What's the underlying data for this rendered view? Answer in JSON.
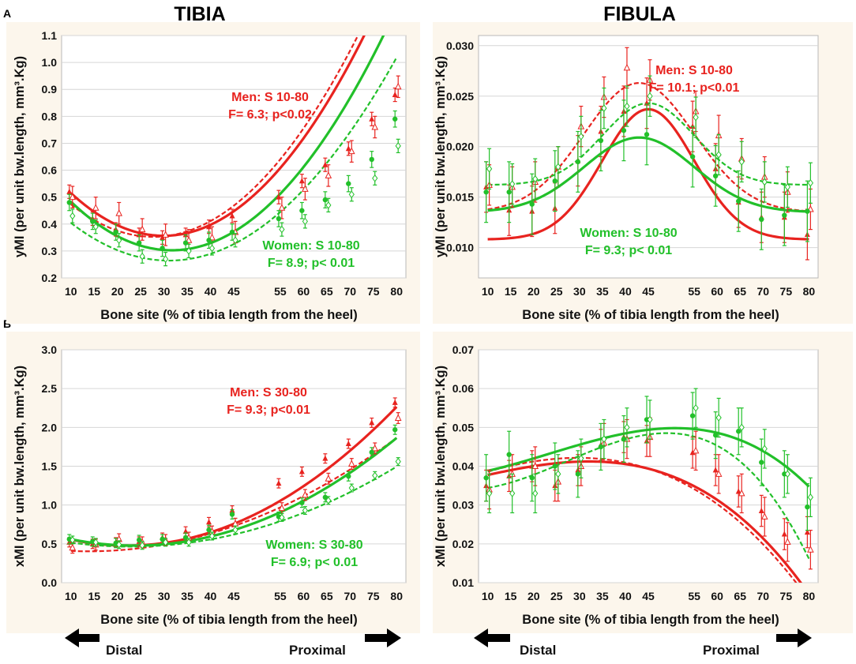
{
  "titles": {
    "tibia": "TIBIA",
    "fibula": "FIBULA"
  },
  "panel_labels": {
    "a": "A",
    "b": "B"
  },
  "navigation": {
    "distal": "Distal",
    "proximal": "Proximal"
  },
  "colors": {
    "men": "#e8231f",
    "women": "#22c02a",
    "background": "#fcf6ec"
  },
  "chart_data": [
    {
      "id": "tibia-ymi",
      "type": "line",
      "xlabel": "Bone site (% of tibia length from the heel)",
      "ylabel": "yMI (per unit bw.length, mm³.Kg)",
      "x": [
        10,
        15,
        20,
        25,
        30,
        35,
        40,
        45,
        55,
        60,
        65,
        70,
        75,
        80
      ],
      "xlim": [
        8,
        82
      ],
      "ylim": [
        0.2,
        1.1
      ],
      "yticks": [
        0.2,
        0.3,
        0.4,
        0.5,
        0.6,
        0.7,
        0.8,
        0.9,
        1.0,
        1.1
      ],
      "yfmt": 1,
      "series": [
        {
          "name": "Men S 10-80 fit",
          "group": "men",
          "style": "solid",
          "poly": [
            0.7143,
            -0.02393,
            0.0004,
            0
          ]
        },
        {
          "name": "Men S 10-80 (dashed fit)",
          "group": "men",
          "style": "dashed",
          "poly": [
            0.6486,
            -0.02138,
            0.000386,
            0
          ]
        },
        {
          "name": "Women S 10-80 fit",
          "group": "women",
          "style": "solid",
          "poly": [
            0.6886,
            -0.02438,
            0.000385,
            0
          ]
        },
        {
          "name": "Women S 10-80 (dashed fit)",
          "group": "women",
          "style": "dashed",
          "poly": [
            0.5686,
            -0.01958,
            0.000315,
            0
          ]
        },
        {
          "name": "Men mean",
          "group": "men",
          "marker": "tri-filled",
          "values": [
            0.52,
            0.42,
            0.38,
            0.36,
            0.35,
            0.36,
            0.39,
            0.43,
            0.5,
            0.56,
            0.62,
            0.68,
            0.79,
            0.88
          ],
          "err": 0.025
        },
        {
          "name": "Men open mean",
          "group": "men",
          "marker": "tri-open",
          "values": [
            0.5,
            0.46,
            0.44,
            0.38,
            0.36,
            0.34,
            0.35,
            0.37,
            0.46,
            0.53,
            0.58,
            0.67,
            0.76,
            0.91
          ],
          "err": 0.04
        },
        {
          "name": "Women mean",
          "group": "women",
          "marker": "circle-filled",
          "values": [
            0.48,
            0.41,
            0.37,
            0.33,
            0.31,
            0.33,
            0.34,
            0.37,
            0.42,
            0.45,
            0.49,
            0.55,
            0.64,
            0.79
          ],
          "err": 0.03
        },
        {
          "name": "Women open mean",
          "group": "women",
          "marker": "diamond-open",
          "values": [
            0.43,
            0.39,
            0.34,
            0.28,
            0.27,
            0.3,
            0.31,
            0.34,
            0.38,
            0.41,
            0.47,
            0.51,
            0.57,
            0.69
          ],
          "err": 0.025
        }
      ],
      "annotations": [
        {
          "group": "men",
          "line1": "Men: S 10-80",
          "line2": "F= 6.3; p<0.02"
        },
        {
          "group": "women",
          "line1": "Women: S 10-80",
          "line2": "F= 8.9; p< 0.01"
        }
      ]
    },
    {
      "id": "fibula-ymi",
      "type": "line",
      "xlabel": "Bone site (% of tibia length from the heel)",
      "ylabel": "yMI (per unit bw.length, mm³.Kg)",
      "x": [
        10,
        15,
        20,
        25,
        30,
        35,
        40,
        45,
        55,
        60,
        65,
        70,
        75,
        80
      ],
      "xlim": [
        8,
        82
      ],
      "ylim": [
        0.007,
        0.031
      ],
      "yticks": [
        0.01,
        0.015,
        0.02,
        0.025,
        0.03
      ],
      "yfmt": 3,
      "series": [
        {
          "name": "Men S 10-80 fit",
          "group": "men",
          "style": "solid",
          "gauss": [
            0.0108,
            0.0237,
            45,
            10
          ]
        },
        {
          "name": "Men S 10-80 (dashed fit)",
          "group": "men",
          "style": "dashed",
          "gauss": [
            0.0135,
            0.0263,
            43,
            12
          ]
        },
        {
          "name": "Women S 10-80 fit",
          "group": "women",
          "style": "solid",
          "gauss": [
            0.0135,
            0.0209,
            43,
            12
          ]
        },
        {
          "name": "Women S 10-80 (dashed fit)",
          "group": "women",
          "style": "dashed",
          "gauss": [
            0.0162,
            0.0243,
            45,
            10
          ]
        },
        {
          "name": "Men mean",
          "group": "men",
          "marker": "tri-filled",
          "values": [
            0.016,
            0.0137,
            0.0136,
            0.0139,
            0.0186,
            0.0215,
            0.0235,
            0.0243,
            0.022,
            0.0178,
            0.0145,
            0.013,
            0.013,
            0.0113
          ],
          "err": 0.0025
        },
        {
          "name": "Men open mean",
          "group": "men",
          "marker": "tri-open",
          "values": [
            0.0162,
            0.016,
            0.0165,
            0.018,
            0.022,
            0.0249,
            0.0278,
            0.0266,
            0.0235,
            0.0211,
            0.0188,
            0.017,
            0.0155,
            0.0138
          ],
          "err": 0.002
        },
        {
          "name": "Women mean",
          "group": "women",
          "marker": "circle-filled",
          "values": [
            0.0155,
            0.0155,
            0.0143,
            0.0166,
            0.0185,
            0.0206,
            0.0216,
            0.0212,
            0.019,
            0.0171,
            0.0146,
            0.0128,
            0.0132,
            0.0136
          ],
          "err": 0.003
        },
        {
          "name": "Women open mean",
          "group": "women",
          "marker": "diamond-open",
          "values": [
            0.0178,
            0.0163,
            0.0168,
            0.018,
            0.021,
            0.0238,
            0.024,
            0.025,
            0.0229,
            0.0192,
            0.0185,
            0.0165,
            0.016,
            0.0164
          ],
          "err": 0.002
        }
      ],
      "annotations": [
        {
          "group": "men",
          "line1": "Men: S 10-80",
          "line2": "F= 10.1; p<0.01"
        },
        {
          "group": "women",
          "line1": "Women: S 10-80",
          "line2": "F= 9.3; p< 0.01"
        }
      ]
    },
    {
      "id": "tibia-xmi",
      "type": "line",
      "xlabel": "Bone site (% of tibia length from the heel)",
      "ylabel": "xMI (per unit bw.length, mm³.Kg)",
      "x": [
        10,
        15,
        20,
        25,
        30,
        35,
        40,
        45,
        55,
        60,
        65,
        70,
        75,
        80
      ],
      "xlim": [
        8,
        82
      ],
      "ylim": [
        0.0,
        3.0
      ],
      "yticks": [
        0.0,
        0.5,
        1.0,
        1.5,
        2.0,
        2.5,
        3.0
      ],
      "yfmt": 1,
      "series": [
        {
          "name": "Men S 30-80 fit",
          "group": "men",
          "style": "solid",
          "poly": [
            0.7386,
            -0.02357,
            0.000533,
            0
          ]
        },
        {
          "name": "Men S 30-80 (dashed fit)",
          "group": "men",
          "style": "dashed",
          "poly": [
            0.4671,
            -0.00917,
            0.000333,
            0
          ]
        },
        {
          "name": "Women S 30-80 fit",
          "group": "women",
          "style": "solid",
          "poly": [
            0.7229,
            -0.02069,
            0.000437,
            0
          ]
        },
        {
          "name": "Women S 30-80 (dashed fit)",
          "group": "women",
          "style": "dashed",
          "poly": [
            0.6286,
            -0.01438,
            0.000315,
            0
          ]
        },
        {
          "name": "Men mean",
          "group": "men",
          "marker": "tri-filled",
          "values": [
            0.52,
            0.5,
            0.52,
            0.53,
            0.58,
            0.66,
            0.78,
            0.93,
            1.28,
            1.43,
            1.6,
            1.79,
            2.06,
            2.32
          ],
          "err": 0.06
        },
        {
          "name": "Men open mean",
          "group": "men",
          "marker": "tri-open",
          "values": [
            0.45,
            0.49,
            0.56,
            0.52,
            0.55,
            0.58,
            0.66,
            0.76,
            0.96,
            1.13,
            1.34,
            1.53,
            1.73,
            2.12
          ],
          "err": 0.07
        },
        {
          "name": "Women mean",
          "group": "women",
          "marker": "circle-filled",
          "values": [
            0.56,
            0.53,
            0.51,
            0.55,
            0.56,
            0.58,
            0.68,
            0.88,
            0.85,
            1.03,
            1.1,
            1.37,
            1.68,
            1.97
          ],
          "err": 0.06
        },
        {
          "name": "Women open mean",
          "group": "women",
          "marker": "diamond-open",
          "values": [
            0.55,
            0.52,
            0.49,
            0.48,
            0.52,
            0.52,
            0.6,
            0.68,
            0.84,
            0.93,
            1.06,
            1.22,
            1.38,
            1.56
          ],
          "err": 0.05
        }
      ],
      "annotations": [
        {
          "group": "men",
          "line1": "Men: S 30-80",
          "line2": "F= 9.3; p<0.01"
        },
        {
          "group": "women",
          "line1": "Women: S 30-80",
          "line2": "F= 6.9; p< 0.01"
        }
      ]
    },
    {
      "id": "fibula-xmi",
      "type": "line",
      "xlabel": "Bone site (% of tibia length from the heel)",
      "ylabel": "xMI (per unit bw.length, mm³.Kg)",
      "x": [
        10,
        15,
        20,
        25,
        30,
        35,
        40,
        45,
        55,
        60,
        65,
        70,
        75,
        80
      ],
      "xlim": [
        8,
        82
      ],
      "ylim": [
        0.01,
        0.07
      ],
      "yticks": [
        0.01,
        0.02,
        0.03,
        0.04,
        0.05,
        0.06,
        0.07
      ],
      "yfmt": 2,
      "series": [
        {
          "name": "Men fit",
          "group": "men",
          "style": "solid",
          "poly": [
            0.035,
            0.000275,
            1e-06,
            -1.1e-07
          ]
        },
        {
          "name": "Men dashed fit",
          "group": "men",
          "style": "dashed",
          "poly": [
            0.0347,
            0.000436,
            -4e-06,
            -7.5e-08
          ]
        },
        {
          "name": "Women fit",
          "group": "women",
          "style": "solid",
          "poly": [
            0.0369,
            9.3e-05,
            1.13e-05,
            -1.6e-07
          ]
        },
        {
          "name": "Women dashed fit",
          "group": "women",
          "style": "dashed",
          "poly": [
            0.0346,
            -0.000267,
            2.83e-05,
            -3.48e-07
          ]
        },
        {
          "name": "Men mean",
          "group": "men",
          "marker": "tri-filled",
          "values": [
            0.035,
            0.0375,
            0.04,
            0.035,
            0.039,
            0.0455,
            0.0475,
            0.0465,
            0.0435,
            0.039,
            0.0335,
            0.0285,
            0.0225,
            0.023
          ],
          "err": 0.004
        },
        {
          "name": "Men open mean",
          "group": "men",
          "marker": "tri-open",
          "values": [
            0.034,
            0.038,
            0.04,
            0.036,
            0.04,
            0.046,
            0.047,
            0.0475,
            0.044,
            0.038,
            0.033,
            0.027,
            0.0205,
            0.0185
          ],
          "err": 0.005
        },
        {
          "name": "Women mean",
          "group": "women",
          "marker": "circle-filled",
          "values": [
            0.037,
            0.043,
            0.037,
            0.04,
            0.038,
            0.045,
            0.047,
            0.052,
            0.053,
            0.048,
            0.049,
            0.041,
            0.038,
            0.0295
          ],
          "err": 0.006
        },
        {
          "name": "Women open mean",
          "group": "women",
          "marker": "diamond-open",
          "values": [
            0.033,
            0.033,
            0.033,
            0.038,
            0.042,
            0.047,
            0.05,
            0.052,
            0.055,
            0.0525,
            0.05,
            0.0445,
            0.038,
            0.032
          ],
          "err": 0.005
        }
      ],
      "annotations": []
    }
  ]
}
